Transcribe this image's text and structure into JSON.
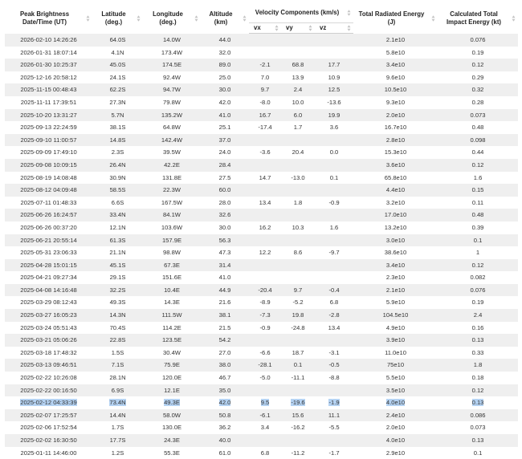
{
  "columns": {
    "date": "Peak Brightness Date/Time (UT)",
    "lat": "Latitude (deg.)",
    "lon": "Longitude (deg.)",
    "alt": "Altitude (km)",
    "velocity": "Velocity Components (km/s)",
    "vx": "vx",
    "vy": "vy",
    "vz": "vz",
    "energy": "Total Radiated Energy (J)",
    "impact": "Calculated Total Impact Energy (kt)"
  },
  "sort_icon": "sort-arrows-icon",
  "selected_row": "2025-02-12 04:33:39",
  "rows": [
    [
      "2026-02-10 14:26:26",
      "64.0S",
      "14.0W",
      "44.0",
      "",
      "",
      "",
      "2.1e10",
      "0.076"
    ],
    [
      "2026-01-31 18:07:14",
      "4.1N",
      "173.4W",
      "32.0",
      "",
      "",
      "",
      "5.8e10",
      "0.19"
    ],
    [
      "2026-01-30 10:25:37",
      "45.0S",
      "174.5E",
      "89.0",
      "-2.1",
      "68.8",
      "17.7",
      "3.4e10",
      "0.12"
    ],
    [
      "2025-12-16 20:58:12",
      "24.1S",
      "92.4W",
      "25.0",
      "7.0",
      "13.9",
      "10.9",
      "9.6e10",
      "0.29"
    ],
    [
      "2025-11-15 00:48:43",
      "62.2S",
      "94.7W",
      "30.0",
      "9.7",
      "2.4",
      "12.5",
      "10.5e10",
      "0.32"
    ],
    [
      "2025-11-11 17:39:51",
      "27.3N",
      "79.8W",
      "42.0",
      "-8.0",
      "10.0",
      "-13.6",
      "9.3e10",
      "0.28"
    ],
    [
      "2025-10-20 13:31:27",
      "5.7N",
      "135.2W",
      "41.0",
      "16.7",
      "6.0",
      "19.9",
      "2.0e10",
      "0.073"
    ],
    [
      "2025-09-13 22:24:59",
      "38.1S",
      "64.8W",
      "25.1",
      "-17.4",
      "1.7",
      "3.6",
      "16.7e10",
      "0.48"
    ],
    [
      "2025-09-10 11:00:57",
      "14.8S",
      "142.4W",
      "37.0",
      "",
      "",
      "",
      "2.8e10",
      "0.098"
    ],
    [
      "2025-09-09 17:49:10",
      "2.3S",
      "39.5W",
      "24.0",
      "-3.6",
      "20.4",
      "0.0",
      "15.3e10",
      "0.44"
    ],
    [
      "2025-09-08 10:09:15",
      "26.4N",
      "42.2E",
      "28.4",
      "",
      "",
      "",
      "3.6e10",
      "0.12"
    ],
    [
      "2025-08-19 14:08:48",
      "30.9N",
      "131.8E",
      "27.5",
      "14.7",
      "-13.0",
      "0.1",
      "65.8e10",
      "1.6"
    ],
    [
      "2025-08-12 04:09:48",
      "58.5S",
      "22.3W",
      "60.0",
      "",
      "",
      "",
      "4.4e10",
      "0.15"
    ],
    [
      "2025-07-11 01:48:33",
      "6.6S",
      "167.5W",
      "28.0",
      "13.4",
      "1.8",
      "-0.9",
      "3.2e10",
      "0.11"
    ],
    [
      "2025-06-26 16:24:57",
      "33.4N",
      "84.1W",
      "32.6",
      "",
      "",
      "",
      "17.0e10",
      "0.48"
    ],
    [
      "2025-06-26 00:37:20",
      "12.1N",
      "103.6W",
      "30.0",
      "16.2",
      "10.3",
      "1.6",
      "13.2e10",
      "0.39"
    ],
    [
      "2025-06-21 20:55:14",
      "61.3S",
      "157.9E",
      "56.3",
      "",
      "",
      "",
      "3.0e10",
      "0.1"
    ],
    [
      "2025-05-31 23:06:33",
      "21.1N",
      "98.8W",
      "47.3",
      "12.2",
      "8.6",
      "-9.7",
      "38.6e10",
      "1"
    ],
    [
      "2025-04-28 15:01:15",
      "45.1S",
      "67.3E",
      "31.4",
      "",
      "",
      "",
      "3.4e10",
      "0.12"
    ],
    [
      "2025-04-21 09:27:34",
      "29.1S",
      "151.6E",
      "41.0",
      "",
      "",
      "",
      "2.3e10",
      "0.082"
    ],
    [
      "2025-04-08 14:16:48",
      "32.2S",
      "10.4E",
      "44.9",
      "-20.4",
      "9.7",
      "-0.4",
      "2.1e10",
      "0.076"
    ],
    [
      "2025-03-29 08:12:43",
      "49.3S",
      "14.3E",
      "21.6",
      "-8.9",
      "-5.2",
      "6.8",
      "5.9e10",
      "0.19"
    ],
    [
      "2025-03-27 16:05:23",
      "14.3N",
      "111.5W",
      "38.1",
      "-7.3",
      "19.8",
      "-2.8",
      "104.5e10",
      "2.4"
    ],
    [
      "2025-03-24 05:51:43",
      "70.4S",
      "114.2E",
      "21.5",
      "-0.9",
      "-24.8",
      "13.4",
      "4.9e10",
      "0.16"
    ],
    [
      "2025-03-21 05:06:26",
      "22.8S",
      "123.5E",
      "54.2",
      "",
      "",
      "",
      "3.9e10",
      "0.13"
    ],
    [
      "2025-03-18 17:48:32",
      "1.5S",
      "30.4W",
      "27.0",
      "-6.6",
      "18.7",
      "-3.1",
      "11.0e10",
      "0.33"
    ],
    [
      "2025-03-13 09:46:51",
      "7.1S",
      "75.9E",
      "38.0",
      "-28.1",
      "0.1",
      "-0.5",
      "75e10",
      "1.8"
    ],
    [
      "2025-02-22 10:26:08",
      "28.1N",
      "120.0E",
      "46.7",
      "-5.0",
      "-11.1",
      "-8.8",
      "5.5e10",
      "0.18"
    ],
    [
      "2025-02-22 00:16:50",
      "6.9S",
      "12.1E",
      "35.0",
      "",
      "",
      "",
      "3.5e10",
      "0.12"
    ],
    [
      "2025-02-12 04:33:39",
      "73.4N",
      "49.3E",
      "42.0",
      "9.5",
      "-19.6",
      "-1.9",
      "4.0e10",
      "0.13"
    ],
    [
      "2025-02-07 17:25:57",
      "14.4N",
      "58.0W",
      "50.8",
      "-6.1",
      "15.6",
      "11.1",
      "2.4e10",
      "0.086"
    ],
    [
      "2025-02-06 17:52:54",
      "1.7S",
      "130.0E",
      "36.2",
      "3.4",
      "-16.2",
      "-5.5",
      "2.0e10",
      "0.073"
    ],
    [
      "2025-02-02 16:30:50",
      "17.7S",
      "24.3E",
      "40.0",
      "",
      "",
      "",
      "4.0e10",
      "0.13"
    ],
    [
      "2025-01-11 14:46:00",
      "1.2S",
      "55.3E",
      "61.0",
      "6.8",
      "-11.2",
      "-1.7",
      "2.9e10",
      "0.1"
    ]
  ]
}
